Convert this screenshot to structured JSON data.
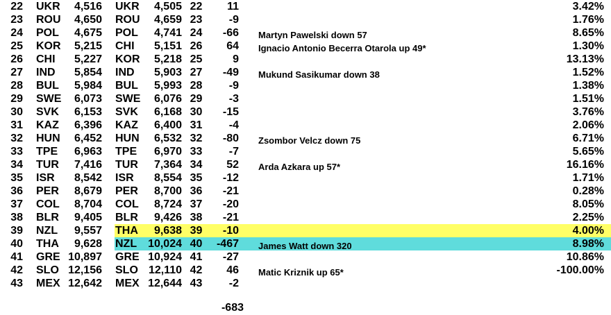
{
  "colors": {
    "highlight_yellow": "#ffff66",
    "highlight_cyan": "#5fdcdc"
  },
  "rows": [
    {
      "rank": "22",
      "country": "UKR",
      "value": "4,516",
      "country2": "UKR",
      "value2": "4,505",
      "rank2": "22",
      "diff": "11",
      "note": "",
      "pct": "3.42%"
    },
    {
      "rank": "23",
      "country": "ROU",
      "value": "4,650",
      "country2": "ROU",
      "value2": "4,659",
      "rank2": "23",
      "diff": "-9",
      "note": "",
      "pct": "1.76%"
    },
    {
      "rank": "24",
      "country": "POL",
      "value": "4,675",
      "country2": "POL",
      "value2": "4,741",
      "rank2": "24",
      "diff": "-66",
      "note": "Martyn Pawelski down 57",
      "pct": "8.65%"
    },
    {
      "rank": "25",
      "country": "KOR",
      "value": "5,215",
      "country2": "CHI",
      "value2": "5,151",
      "rank2": "26",
      "diff": "64",
      "note": "Ignacio Antonio Becerra Otarola up 49*",
      "pct": "1.30%"
    },
    {
      "rank": "26",
      "country": "CHI",
      "value": "5,227",
      "country2": "KOR",
      "value2": "5,218",
      "rank2": "25",
      "diff": "9",
      "note": "",
      "pct": "13.13%"
    },
    {
      "rank": "27",
      "country": "IND",
      "value": "5,854",
      "country2": "IND",
      "value2": "5,903",
      "rank2": "27",
      "diff": "-49",
      "note": "Mukund Sasikumar down 38",
      "pct": "1.52%"
    },
    {
      "rank": "28",
      "country": "BUL",
      "value": "5,984",
      "country2": "BUL",
      "value2": "5,993",
      "rank2": "28",
      "diff": "-9",
      "note": "",
      "pct": "1.38%"
    },
    {
      "rank": "29",
      "country": "SWE",
      "value": "6,073",
      "country2": "SWE",
      "value2": "6,076",
      "rank2": "29",
      "diff": "-3",
      "note": "",
      "pct": "1.51%"
    },
    {
      "rank": "30",
      "country": "SVK",
      "value": "6,153",
      "country2": "SVK",
      "value2": "6,168",
      "rank2": "30",
      "diff": "-15",
      "note": "",
      "pct": "3.76%"
    },
    {
      "rank": "31",
      "country": "KAZ",
      "value": "6,396",
      "country2": "KAZ",
      "value2": "6,400",
      "rank2": "31",
      "diff": "-4",
      "note": "",
      "pct": "2.06%"
    },
    {
      "rank": "32",
      "country": "HUN",
      "value": "6,452",
      "country2": "HUN",
      "value2": "6,532",
      "rank2": "32",
      "diff": "-80",
      "note": "Zsombor Velcz down 75",
      "pct": "6.71%"
    },
    {
      "rank": "33",
      "country": "TPE",
      "value": "6,963",
      "country2": "TPE",
      "value2": "6,970",
      "rank2": "33",
      "diff": "-7",
      "note": "",
      "pct": "5.65%"
    },
    {
      "rank": "34",
      "country": "TUR",
      "value": "7,416",
      "country2": "TUR",
      "value2": "7,364",
      "rank2": "34",
      "diff": "52",
      "note": "Arda Azkara up 57*",
      "pct": "16.16%"
    },
    {
      "rank": "35",
      "country": "ISR",
      "value": "8,542",
      "country2": "ISR",
      "value2": "8,554",
      "rank2": "35",
      "diff": "-12",
      "note": "",
      "pct": "1.71%"
    },
    {
      "rank": "36",
      "country": "PER",
      "value": "8,679",
      "country2": "PER",
      "value2": "8,700",
      "rank2": "36",
      "diff": "-21",
      "note": "",
      "pct": "0.28%"
    },
    {
      "rank": "37",
      "country": "COL",
      "value": "8,704",
      "country2": "COL",
      "value2": "8,724",
      "rank2": "37",
      "diff": "-20",
      "note": "",
      "pct": "8.05%"
    },
    {
      "rank": "38",
      "country": "BLR",
      "value": "9,405",
      "country2": "BLR",
      "value2": "9,426",
      "rank2": "38",
      "diff": "-21",
      "note": "",
      "pct": "2.25%"
    },
    {
      "rank": "39",
      "country": "NZL",
      "value": "9,557",
      "country2": "THA",
      "value2": "9,638",
      "rank2": "39",
      "diff": "-10",
      "note": "",
      "pct": "4.00%",
      "highlight": "highlight_yellow"
    },
    {
      "rank": "40",
      "country": "THA",
      "value": "9,628",
      "country2": "NZL",
      "value2": "10,024",
      "rank2": "40",
      "diff": "-467",
      "note": "James Watt down 320",
      "pct": "8.98%",
      "highlight": "highlight_cyan"
    },
    {
      "rank": "41",
      "country": "GRE",
      "value": "10,897",
      "country2": "GRE",
      "value2": "10,924",
      "rank2": "41",
      "diff": "-27",
      "note": "",
      "pct": "10.86%"
    },
    {
      "rank": "42",
      "country": "SLO",
      "value": "12,156",
      "country2": "SLO",
      "value2": "12,110",
      "rank2": "42",
      "diff": "46",
      "note": "Matic Kriznik up 65*",
      "pct": "-100.00%"
    },
    {
      "rank": "43",
      "country": "MEX",
      "value": "12,642",
      "country2": "MEX",
      "value2": "12,644",
      "rank2": "43",
      "diff": "-2",
      "note": "",
      "pct": ""
    }
  ],
  "total_diff": "-683"
}
